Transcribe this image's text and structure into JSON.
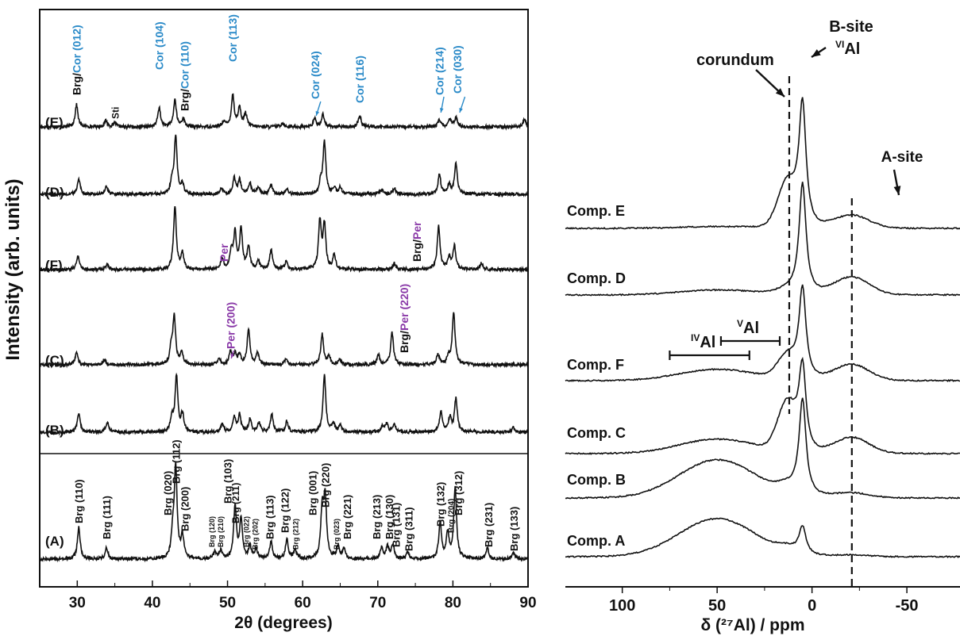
{
  "chart_data": [
    {
      "type": "line",
      "xlabel": "2θ (degrees)",
      "ylabel": "Intensity (arb. units)",
      "xlim": [
        25,
        90
      ],
      "x_ticks": [
        30,
        40,
        50,
        60,
        70,
        80,
        90
      ],
      "grid": false,
      "series": [
        {
          "name": "(E)",
          "peaks": [
            [
              29.9,
              28
            ],
            [
              33.8,
              8
            ],
            [
              35.0,
              5
            ],
            [
              40.9,
              24
            ],
            [
              43.0,
              34
            ],
            [
              44.1,
              10
            ],
            [
              49.5,
              7
            ],
            [
              50.7,
              40
            ],
            [
              51.6,
              24
            ],
            [
              52.4,
              16
            ],
            [
              57.3,
              5
            ],
            [
              61.6,
              10
            ],
            [
              62.7,
              16
            ],
            [
              67.6,
              15
            ],
            [
              78.2,
              9
            ],
            [
              79.6,
              9
            ],
            [
              80.4,
              12
            ],
            [
              89.5,
              10
            ]
          ],
          "labels": [
            {
              "text": "Brg/",
              "color": "#111111",
              "x": 29.9
            },
            {
              "text": "Cor (012)",
              "color": "#2a8ac8",
              "x": 29.9
            },
            {
              "text": "Sti",
              "color": "#111111",
              "x": 35.0
            },
            {
              "text": "Cor (104)",
              "color": "#2a8ac8",
              "x": 40.9
            },
            {
              "text": "Brg/",
              "color": "#111111",
              "x": 44.3
            },
            {
              "text": "Cor (110)",
              "color": "#2a8ac8",
              "x": 44.3
            },
            {
              "text": "Cor (113)",
              "color": "#2a8ac8",
              "x": 50.7
            },
            {
              "text": "Cor (024)",
              "color": "#2a8ac8",
              "x": 61.7
            },
            {
              "text": "Cor (116)",
              "color": "#2a8ac8",
              "x": 67.6
            },
            {
              "text": "Cor (214)",
              "color": "#2a8ac8",
              "x": 78.2
            },
            {
              "text": "Cor (030)",
              "color": "#2a8ac8",
              "x": 80.6
            }
          ]
        },
        {
          "name": "(D)",
          "peaks": [
            [
              30.2,
              20
            ],
            [
              33.9,
              10
            ],
            [
              42.6,
              15
            ],
            [
              43.1,
              72
            ],
            [
              44.0,
              12
            ],
            [
              49.2,
              7
            ],
            [
              50.9,
              20
            ],
            [
              51.6,
              18
            ],
            [
              53.0,
              13
            ],
            [
              54.1,
              10
            ],
            [
              55.8,
              12
            ],
            [
              57.9,
              8
            ],
            [
              62.4,
              15
            ],
            [
              62.9,
              65
            ],
            [
              64.2,
              8
            ],
            [
              65.0,
              8
            ],
            [
              70.5,
              6
            ],
            [
              72.2,
              8
            ],
            [
              78.2,
              25
            ],
            [
              79.5,
              12
            ],
            [
              80.4,
              38
            ]
          ],
          "labels": []
        },
        {
          "name": "(F)",
          "peaks": [
            [
              30.1,
              18
            ],
            [
              34.0,
              7
            ],
            [
              43.0,
              80
            ],
            [
              44.0,
              20
            ],
            [
              49.3,
              13
            ],
            [
              50.5,
              22
            ],
            [
              51.0,
              44
            ],
            [
              51.8,
              50
            ],
            [
              52.8,
              28
            ],
            [
              54.1,
              10
            ],
            [
              55.8,
              25
            ],
            [
              57.8,
              10
            ],
            [
              62.3,
              60
            ],
            [
              62.9,
              55
            ],
            [
              64.2,
              18
            ],
            [
              72.2,
              8
            ],
            [
              78.1,
              55
            ],
            [
              79.5,
              15
            ],
            [
              80.2,
              30
            ],
            [
              83.8,
              8
            ]
          ],
          "labels": [
            {
              "text": "Per",
              "color": "#8a3aa8",
              "x": 49.5
            },
            {
              "text": "Brg/",
              "color": "#111111",
              "x": 75.2
            },
            {
              "text": "Per",
              "color": "#8a3aa8",
              "x": 75.2
            }
          ]
        },
        {
          "name": "(C)",
          "peaks": [
            [
              29.9,
              15
            ],
            [
              33.6,
              7
            ],
            [
              42.5,
              18
            ],
            [
              42.9,
              60
            ],
            [
              43.9,
              16
            ],
            [
              48.9,
              7
            ],
            [
              50.4,
              16
            ],
            [
              51.0,
              13
            ],
            [
              51.6,
              12
            ],
            [
              52.8,
              45
            ],
            [
              54.0,
              15
            ],
            [
              57.8,
              8
            ],
            [
              62.6,
              38
            ],
            [
              63.5,
              10
            ],
            [
              64.9,
              7
            ],
            [
              70.1,
              12
            ],
            [
              71.9,
              40
            ],
            [
              78.0,
              14
            ],
            [
              79.4,
              10
            ],
            [
              80.1,
              66
            ]
          ],
          "labels": [
            {
              "text": "Per (200)",
              "color": "#8a3aa8",
              "x": 50.4
            },
            {
              "text": "Brg/",
              "color": "#111111",
              "x": 73.5
            },
            {
              "text": "Per (220)",
              "color": "#8a3aa8",
              "x": 73.5
            }
          ]
        },
        {
          "name": "(B)",
          "peaks": [
            [
              30.2,
              25
            ],
            [
              34.0,
              12
            ],
            [
              42.6,
              18
            ],
            [
              43.2,
              70
            ],
            [
              44.0,
              22
            ],
            [
              49.3,
              10
            ],
            [
              50.9,
              18
            ],
            [
              51.6,
              22
            ],
            [
              53.0,
              16
            ],
            [
              54.2,
              12
            ],
            [
              55.9,
              22
            ],
            [
              57.9,
              14
            ],
            [
              62.9,
              72
            ],
            [
              64.1,
              10
            ],
            [
              65.0,
              8
            ],
            [
              70.6,
              8
            ],
            [
              71.2,
              10
            ],
            [
              72.2,
              10
            ],
            [
              78.4,
              26
            ],
            [
              79.6,
              18
            ],
            [
              80.4,
              42
            ],
            [
              88.0,
              6
            ]
          ],
          "labels": []
        },
        {
          "name": "(A)",
          "peaks": [
            [
              30.2,
              40
            ],
            [
              33.9,
              14
            ],
            [
              42.7,
              28
            ],
            [
              43.1,
              115
            ],
            [
              44.0,
              28
            ],
            [
              48.3,
              8
            ],
            [
              49.1,
              10
            ],
            [
              51.0,
              65
            ],
            [
              51.8,
              50
            ],
            [
              53.0,
              15
            ],
            [
              53.8,
              12
            ],
            [
              55.8,
              22
            ],
            [
              57.9,
              24
            ],
            [
              59.0,
              12
            ],
            [
              62.6,
              60
            ],
            [
              63.0,
              75
            ],
            [
              64.7,
              15
            ],
            [
              65.5,
              12
            ],
            [
              70.5,
              14
            ],
            [
              71.3,
              15
            ],
            [
              72.0,
              18
            ],
            [
              74.0,
              8
            ],
            [
              78.3,
              45
            ],
            [
              79.3,
              32
            ],
            [
              80.3,
              90
            ],
            [
              84.6,
              14
            ],
            [
              88.1,
              8
            ]
          ],
          "labels": [
            {
              "text": "Brg (110)",
              "color": "#111111",
              "x": 30.2
            },
            {
              "text": "Brg (111)",
              "color": "#111111",
              "x": 33.9
            },
            {
              "text": "Brg (020)",
              "color": "#111111",
              "x": 42.0
            },
            {
              "text": "Brg (112)",
              "color": "#111111",
              "x": 43.1
            },
            {
              "text": "Brg (200)",
              "color": "#111111",
              "x": 44.3
            },
            {
              "text": "Brg (120)",
              "color": "#111111",
              "x": 47.7
            },
            {
              "text": "Brg (210)",
              "color": "#111111",
              "x": 48.9
            },
            {
              "text": "Brg (103)",
              "color": "#111111",
              "x": 50.0
            },
            {
              "text": "Brg (211)",
              "color": "#111111",
              "x": 51.0
            },
            {
              "text": "Brg (022)",
              "color": "#111111",
              "x": 52.3
            },
            {
              "text": "Brg (202)",
              "color": "#111111",
              "x": 53.5
            },
            {
              "text": "Brg (113)",
              "color": "#111111",
              "x": 55.6
            },
            {
              "text": "Brg (122)",
              "color": "#111111",
              "x": 57.6
            },
            {
              "text": "Brg (212)",
              "color": "#111111",
              "x": 58.9
            },
            {
              "text": "Brg (001)",
              "color": "#111111",
              "x": 61.3
            },
            {
              "text": "Brg (220)",
              "color": "#111111",
              "x": 63.0
            },
            {
              "text": "Brg (023)",
              "color": "#111111",
              "x": 64.3
            },
            {
              "text": "Brg (221)",
              "color": "#111111",
              "x": 65.9
            },
            {
              "text": "Brg (213)",
              "color": "#111111",
              "x": 69.8
            },
            {
              "text": "Brg (130)",
              "color": "#111111",
              "x": 71.5
            },
            {
              "text": "Brg (131)",
              "color": "#111111",
              "x": 72.4
            },
            {
              "text": "Brg (311)",
              "color": "#111111",
              "x": 74.1
            },
            {
              "text": "Brg (132)",
              "color": "#111111",
              "x": 78.3
            },
            {
              "text": "Brg (204)",
              "color": "#111111",
              "x": 79.6
            },
            {
              "text": "Brg (312)",
              "color": "#111111",
              "x": 80.7
            },
            {
              "text": "Brg (231)",
              "color": "#111111",
              "x": 84.7
            },
            {
              "text": "Brg (133)",
              "color": "#111111",
              "x": 88.1
            }
          ]
        }
      ]
    },
    {
      "type": "line",
      "xlabel": "δ (²⁷Al) / ppm",
      "ylabel": "",
      "xlim": [
        130,
        -78
      ],
      "x_ticks": [
        100,
        50,
        0,
        -50
      ],
      "grid": false,
      "series": [
        {
          "name": "Comp. E",
          "broad_44": 2,
          "broad_cor": 55,
          "b_site": 150,
          "a_site": 16
        },
        {
          "name": "Comp. D",
          "broad_44": 6,
          "broad_cor": 5,
          "b_site": 140,
          "a_site": 22
        },
        {
          "name": "Comp. F",
          "broad_44": 14,
          "broad_cor": 28,
          "b_site": 112,
          "a_site": 20
        },
        {
          "name": "Comp. C",
          "broad_44": 18,
          "broad_cor": 60,
          "b_site": 102,
          "a_site": 20
        },
        {
          "name": "Comp. B",
          "broad_44": 48,
          "broad_cor": 8,
          "b_site": 120,
          "a_site": 6
        },
        {
          "name": "Comp. A",
          "broad_44": 48,
          "broad_cor": 6,
          "b_site": 34,
          "a_site": 2
        }
      ],
      "annotations": {
        "corundum": "corundum",
        "b_site_line1": "B-site",
        "b_site_sup": "VI",
        "b_site_al": "Al",
        "a_site": "A-site",
        "iv_sup": "IV",
        "iv_al": "Al",
        "v_sup": "V",
        "v_al": "Al",
        "corundum_line_x": 12,
        "a_site_line_x": -21,
        "iv_range": [
          75,
          33
        ],
        "v_range": [
          48,
          17
        ]
      }
    }
  ]
}
